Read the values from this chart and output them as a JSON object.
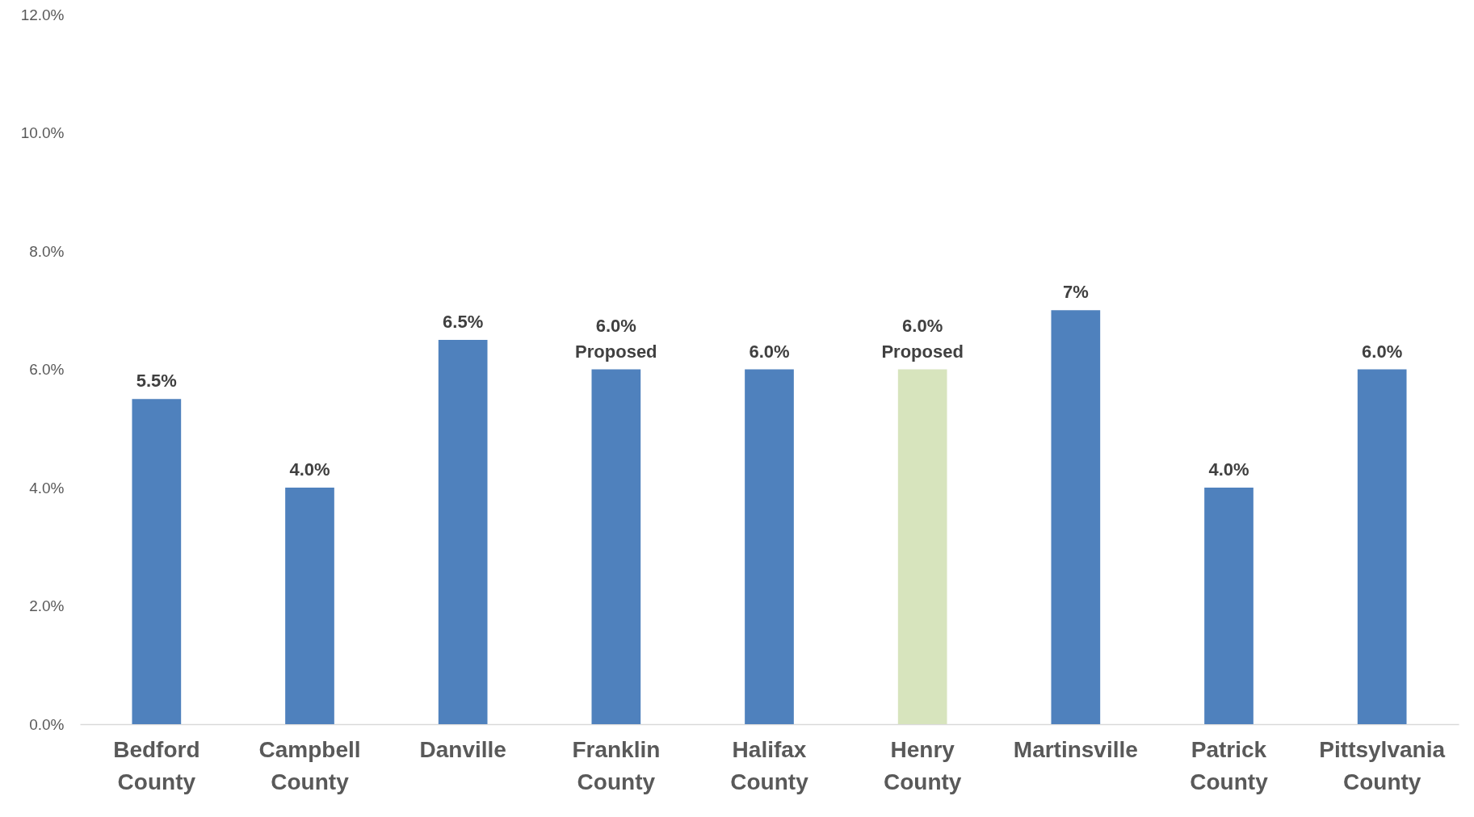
{
  "chart_data": {
    "type": "bar",
    "categories": [
      "Bedford County",
      "Campbell County",
      "Danville",
      "Franklin County",
      "Halifax County",
      "Henry County",
      "Martinsville",
      "Patrick County",
      "Pittsylvania County"
    ],
    "values": [
      5.5,
      4.0,
      6.5,
      6.0,
      6.0,
      6.0,
      7,
      4.0,
      6.0
    ],
    "colors": [
      "#4f81bd",
      "#4f81bd",
      "#4f81bd",
      "#4f81bd",
      "#4f81bd",
      "#d7e4bd",
      "#4f81bd",
      "#4f81bd",
      "#4f81bd"
    ],
    "value_labels": [
      "5.5%",
      "4.0%",
      "6.5%",
      "6.0%\nProposed",
      "6.0%",
      "6.0%\nProposed",
      "7%",
      "4.0%",
      "6.0%"
    ],
    "ylim": [
      0,
      12
    ],
    "yticks": [
      {
        "value": 0,
        "label": "0.0%"
      },
      {
        "value": 2,
        "label": "2.0%"
      },
      {
        "value": 4,
        "label": "4.0%"
      },
      {
        "value": 6,
        "label": "6.0%"
      },
      {
        "value": 8,
        "label": "8.0%"
      },
      {
        "value": 10,
        "label": "10.0%"
      },
      {
        "value": 12,
        "label": "12.0%"
      }
    ],
    "grid": false
  }
}
